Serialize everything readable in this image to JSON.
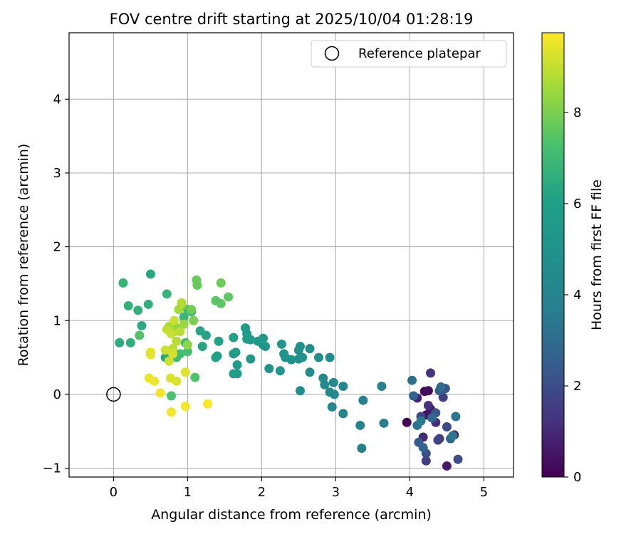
{
  "chart_data": {
    "type": "scatter",
    "title": "FOV centre drift starting at 2025/10/04 01:28:19",
    "xlabel": "Angular distance from reference (arcmin)",
    "ylabel": "Rotation from reference (arcmin)",
    "xlim": [
      -0.6,
      5.4
    ],
    "ylim": [
      -1.12,
      4.9
    ],
    "xticks": [
      0,
      1,
      2,
      3,
      4,
      5
    ],
    "yticks": [
      -1,
      0,
      1,
      2,
      3,
      4
    ],
    "xtick_labels": [
      "0",
      "1",
      "2",
      "3",
      "4",
      "5"
    ],
    "ytick_labels": [
      "−1",
      "0",
      "1",
      "2",
      "3",
      "4"
    ],
    "grid": true,
    "colorbar": {
      "label": "Hours from first FF file",
      "range": [
        0,
        9.75
      ],
      "ticks": [
        0,
        2,
        4,
        6,
        8
      ],
      "tick_labels": [
        "0",
        "2",
        "4",
        "6",
        "8"
      ],
      "colormap": "viridis"
    },
    "legend": {
      "position": "top-right",
      "entries": [
        "Reference platepar"
      ]
    },
    "reference_point": {
      "x": 0,
      "y": 0,
      "label": "Reference platepar"
    },
    "points": [
      {
        "x": 3.96,
        "y": -0.38,
        "c": 0.1
      },
      {
        "x": 4.2,
        "y": 0.04,
        "c": 0.2
      },
      {
        "x": 4.25,
        "y": 0.05,
        "c": 0.3
      },
      {
        "x": 4.22,
        "y": -0.28,
        "c": 0.4
      },
      {
        "x": 4.28,
        "y": -0.2,
        "c": 0.5
      },
      {
        "x": 4.5,
        "y": -0.97,
        "c": 0.6
      },
      {
        "x": 4.6,
        "y": -0.55,
        "c": 0.7
      },
      {
        "x": 4.3,
        "y": -0.3,
        "c": 0.8
      },
      {
        "x": 4.1,
        "y": -0.05,
        "c": 0.9
      },
      {
        "x": 4.18,
        "y": -0.58,
        "c": 1.0
      },
      {
        "x": 4.35,
        "y": -0.38,
        "c": 1.1
      },
      {
        "x": 4.25,
        "y": -0.15,
        "c": 1.2
      },
      {
        "x": 4.28,
        "y": 0.29,
        "c": 1.3
      },
      {
        "x": 4.4,
        "y": -0.6,
        "c": 1.4
      },
      {
        "x": 4.22,
        "y": -0.9,
        "c": 1.5
      },
      {
        "x": 4.45,
        "y": -0.04,
        "c": 1.6
      },
      {
        "x": 4.38,
        "y": -0.62,
        "c": 1.7
      },
      {
        "x": 4.15,
        "y": -0.3,
        "c": 1.8
      },
      {
        "x": 4.5,
        "y": -0.44,
        "c": 1.9
      },
      {
        "x": 4.65,
        "y": -0.88,
        "c": 2.0
      },
      {
        "x": 4.22,
        "y": -0.8,
        "c": 2.1
      },
      {
        "x": 4.48,
        "y": 0.08,
        "c": 2.2
      },
      {
        "x": 4.35,
        "y": -0.25,
        "c": 2.3
      },
      {
        "x": 4.12,
        "y": -0.65,
        "c": 2.4
      },
      {
        "x": 4.4,
        "y": 0.05,
        "c": 2.5
      },
      {
        "x": 4.05,
        "y": -0.02,
        "c": 2.6
      },
      {
        "x": 4.55,
        "y": -0.6,
        "c": 2.7
      },
      {
        "x": 4.18,
        "y": -0.72,
        "c": 2.8
      },
      {
        "x": 4.3,
        "y": -0.32,
        "c": 2.9
      },
      {
        "x": 4.42,
        "y": 0.1,
        "c": 3.0
      },
      {
        "x": 4.03,
        "y": 0.19,
        "c": 3.1
      },
      {
        "x": 4.1,
        "y": -0.42,
        "c": 3.2
      },
      {
        "x": 4.62,
        "y": -0.3,
        "c": 3.3
      },
      {
        "x": 4.58,
        "y": -0.56,
        "c": 3.4
      },
      {
        "x": 4.15,
        "y": -0.36,
        "c": 3.5
      },
      {
        "x": 3.65,
        "y": -0.39,
        "c": 3.6
      },
      {
        "x": 3.35,
        "y": -0.73,
        "c": 3.7
      },
      {
        "x": 3.37,
        "y": -0.08,
        "c": 3.8
      },
      {
        "x": 3.62,
        "y": 0.11,
        "c": 3.9
      },
      {
        "x": 3.33,
        "y": -0.42,
        "c": 4.0
      },
      {
        "x": 3.1,
        "y": 0.11,
        "c": 4.1
      },
      {
        "x": 3.1,
        "y": -0.26,
        "c": 4.15
      },
      {
        "x": 2.95,
        "y": -0.17,
        "c": 4.2
      },
      {
        "x": 2.92,
        "y": 0.03,
        "c": 4.25
      },
      {
        "x": 2.97,
        "y": 0.16,
        "c": 4.3
      },
      {
        "x": 2.98,
        "y": 0.0,
        "c": 4.35
      },
      {
        "x": 2.85,
        "y": 0.13,
        "c": 4.4
      },
      {
        "x": 2.83,
        "y": 0.22,
        "c": 4.45
      },
      {
        "x": 2.92,
        "y": 0.5,
        "c": 4.5
      },
      {
        "x": 2.77,
        "y": 0.5,
        "c": 4.55
      },
      {
        "x": 2.65,
        "y": 0.3,
        "c": 4.6
      },
      {
        "x": 2.65,
        "y": 0.62,
        "c": 4.65
      },
      {
        "x": 2.5,
        "y": 0.6,
        "c": 4.7
      },
      {
        "x": 2.52,
        "y": 0.05,
        "c": 4.75
      },
      {
        "x": 2.5,
        "y": 0.48,
        "c": 4.8
      },
      {
        "x": 2.55,
        "y": 0.5,
        "c": 4.85
      },
      {
        "x": 2.52,
        "y": 0.65,
        "c": 4.9
      },
      {
        "x": 2.4,
        "y": 0.47,
        "c": 4.95
      },
      {
        "x": 2.32,
        "y": 0.5,
        "c": 5.0
      },
      {
        "x": 2.3,
        "y": 0.55,
        "c": 5.05
      },
      {
        "x": 2.25,
        "y": 0.32,
        "c": 5.1
      },
      {
        "x": 2.27,
        "y": 0.68,
        "c": 5.15
      },
      {
        "x": 2.1,
        "y": 0.35,
        "c": 5.2
      },
      {
        "x": 2.05,
        "y": 0.65,
        "c": 5.3
      },
      {
        "x": 2.02,
        "y": 0.67,
        "c": 5.35
      },
      {
        "x": 2.02,
        "y": 0.76,
        "c": 5.4
      },
      {
        "x": 1.95,
        "y": 0.72,
        "c": 5.45
      },
      {
        "x": 1.85,
        "y": 0.48,
        "c": 5.5
      },
      {
        "x": 1.85,
        "y": 0.74,
        "c": 5.55
      },
      {
        "x": 1.8,
        "y": 0.75,
        "c": 5.6
      },
      {
        "x": 1.78,
        "y": 0.9,
        "c": 5.65
      },
      {
        "x": 1.8,
        "y": 0.82,
        "c": 5.7
      },
      {
        "x": 1.67,
        "y": 0.4,
        "c": 5.75
      },
      {
        "x": 1.67,
        "y": 0.28,
        "c": 5.8
      },
      {
        "x": 1.62,
        "y": 0.28,
        "c": 5.85
      },
      {
        "x": 1.62,
        "y": 0.55,
        "c": 5.9
      },
      {
        "x": 1.65,
        "y": 0.57,
        "c": 5.95
      },
      {
        "x": 1.62,
        "y": 0.77,
        "c": 6.0
      },
      {
        "x": 1.42,
        "y": 0.72,
        "c": 6.05
      },
      {
        "x": 1.4,
        "y": 0.52,
        "c": 6.1
      },
      {
        "x": 1.38,
        "y": 0.5,
        "c": 6.15
      },
      {
        "x": 1.25,
        "y": 0.8,
        "c": 6.2
      },
      {
        "x": 1.2,
        "y": 0.65,
        "c": 6.25
      },
      {
        "x": 1.17,
        "y": 0.86,
        "c": 6.3
      },
      {
        "x": 0.5,
        "y": 1.63,
        "c": 6.35
      },
      {
        "x": 0.7,
        "y": 0.5,
        "c": 6.4
      },
      {
        "x": 0.38,
        "y": 0.93,
        "c": 6.45
      },
      {
        "x": 0.08,
        "y": 0.7,
        "c": 6.5
      },
      {
        "x": 0.23,
        "y": 0.7,
        "c": 6.55
      },
      {
        "x": 0.47,
        "y": 1.22,
        "c": 6.6
      },
      {
        "x": 0.2,
        "y": 1.2,
        "c": 6.65
      },
      {
        "x": 0.33,
        "y": 1.14,
        "c": 6.7
      },
      {
        "x": 0.13,
        "y": 1.51,
        "c": 6.75
      },
      {
        "x": 0.72,
        "y": 1.36,
        "c": 6.8
      },
      {
        "x": 0.95,
        "y": 1.05,
        "c": 6.9
      },
      {
        "x": 1.05,
        "y": 1.12,
        "c": 6.95
      },
      {
        "x": 1.0,
        "y": 1.15,
        "c": 7.0
      },
      {
        "x": 0.85,
        "y": 0.5,
        "c": 7.05
      },
      {
        "x": 0.9,
        "y": 0.55,
        "c": 7.1
      },
      {
        "x": 0.97,
        "y": 0.7,
        "c": 7.15
      },
      {
        "x": 1.0,
        "y": 0.58,
        "c": 7.2
      },
      {
        "x": 0.78,
        "y": -0.02,
        "c": 7.3
      },
      {
        "x": 1.1,
        "y": 0.23,
        "c": 7.35
      },
      {
        "x": 0.35,
        "y": 0.8,
        "c": 7.4
      },
      {
        "x": 1.38,
        "y": 1.27,
        "c": 7.5
      },
      {
        "x": 1.45,
        "y": 1.23,
        "c": 7.55
      },
      {
        "x": 1.55,
        "y": 1.32,
        "c": 7.6
      },
      {
        "x": 1.13,
        "y": 1.48,
        "c": 7.7
      },
      {
        "x": 1.12,
        "y": 1.55,
        "c": 7.75
      },
      {
        "x": 1.45,
        "y": 1.51,
        "c": 7.8
      },
      {
        "x": 1.05,
        "y": 1.15,
        "c": 7.9
      },
      {
        "x": 1.08,
        "y": 1.0,
        "c": 8.0
      },
      {
        "x": 0.92,
        "y": 1.2,
        "c": 8.1
      },
      {
        "x": 0.85,
        "y": 0.9,
        "c": 8.2
      },
      {
        "x": 1.0,
        "y": 0.67,
        "c": 8.3
      },
      {
        "x": 0.95,
        "y": 0.95,
        "c": 8.4
      },
      {
        "x": 0.82,
        "y": 0.85,
        "c": 8.5
      },
      {
        "x": 0.88,
        "y": 1.15,
        "c": 8.6
      },
      {
        "x": 0.75,
        "y": 0.92,
        "c": 8.7
      },
      {
        "x": 0.92,
        "y": 1.24,
        "c": 8.75
      },
      {
        "x": 0.85,
        "y": 0.72,
        "c": 8.8
      },
      {
        "x": 0.9,
        "y": 0.85,
        "c": 8.85
      },
      {
        "x": 0.8,
        "y": 0.62,
        "c": 8.9
      },
      {
        "x": 0.72,
        "y": 0.88,
        "c": 8.95
      },
      {
        "x": 0.78,
        "y": 0.82,
        "c": 9.0
      },
      {
        "x": 0.82,
        "y": 1.0,
        "c": 9.05
      },
      {
        "x": 0.7,
        "y": 0.6,
        "c": 9.1
      },
      {
        "x": 0.75,
        "y": 0.45,
        "c": 9.15
      },
      {
        "x": 0.8,
        "y": 0.55,
        "c": 9.2
      },
      {
        "x": 0.77,
        "y": 0.22,
        "c": 9.25
      },
      {
        "x": 0.85,
        "y": 0.18,
        "c": 9.3
      },
      {
        "x": 0.97,
        "y": 0.3,
        "c": 9.35
      },
      {
        "x": 0.5,
        "y": 0.57,
        "c": 9.4
      },
      {
        "x": 0.5,
        "y": 0.54,
        "c": 9.45
      },
      {
        "x": 0.48,
        "y": 0.22,
        "c": 9.5
      },
      {
        "x": 0.55,
        "y": 0.18,
        "c": 9.55
      },
      {
        "x": 0.63,
        "y": 0.02,
        "c": 9.6
      },
      {
        "x": 0.78,
        "y": -0.24,
        "c": 9.62
      },
      {
        "x": 0.97,
        "y": -0.16,
        "c": 9.65
      },
      {
        "x": 1.27,
        "y": -0.13,
        "c": 9.7
      }
    ]
  }
}
